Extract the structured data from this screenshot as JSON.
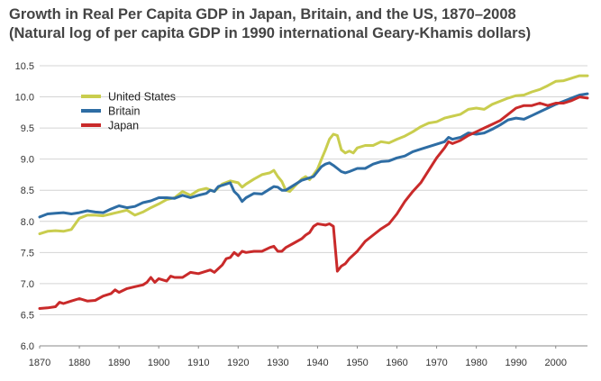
{
  "chart_data": {
    "type": "line",
    "title": "Growth in Real Per Capita GDP in Japan, Britain, and the US, 1870–2008",
    "subtitle": "(Natural log of per capita GDP in 1990 international Geary-Khamis dollars)",
    "xlabel": "",
    "ylabel": "",
    "xlim": [
      1870,
      2008
    ],
    "ylim": [
      6.0,
      10.5
    ],
    "x_ticks": [
      "1870",
      "1880",
      "1890",
      "1900",
      "1910",
      "1920",
      "1930",
      "1940",
      "1950",
      "1960",
      "1970",
      "1980",
      "1990",
      "2000"
    ],
    "y_ticks": [
      "6.0",
      "6.5",
      "7.0",
      "7.5",
      "8.0",
      "8.5",
      "9.0",
      "9.5",
      "10.0",
      "10.5"
    ],
    "grid": "horizontal",
    "legend_position": "top-left",
    "series": [
      {
        "name": "United States",
        "color": "#c9cd4e",
        "points": [
          [
            1870,
            7.8
          ],
          [
            1872,
            7.84
          ],
          [
            1874,
            7.85
          ],
          [
            1876,
            7.84
          ],
          [
            1878,
            7.87
          ],
          [
            1880,
            8.05
          ],
          [
            1882,
            8.1
          ],
          [
            1884,
            8.1
          ],
          [
            1886,
            8.09
          ],
          [
            1888,
            8.12
          ],
          [
            1890,
            8.15
          ],
          [
            1892,
            8.18
          ],
          [
            1894,
            8.1
          ],
          [
            1896,
            8.15
          ],
          [
            1898,
            8.22
          ],
          [
            1900,
            8.28
          ],
          [
            1902,
            8.35
          ],
          [
            1904,
            8.38
          ],
          [
            1906,
            8.48
          ],
          [
            1908,
            8.42
          ],
          [
            1910,
            8.5
          ],
          [
            1912,
            8.53
          ],
          [
            1914,
            8.48
          ],
          [
            1916,
            8.6
          ],
          [
            1918,
            8.65
          ],
          [
            1920,
            8.62
          ],
          [
            1921,
            8.55
          ],
          [
            1922,
            8.6
          ],
          [
            1924,
            8.68
          ],
          [
            1926,
            8.75
          ],
          [
            1928,
            8.78
          ],
          [
            1929,
            8.82
          ],
          [
            1930,
            8.72
          ],
          [
            1931,
            8.64
          ],
          [
            1932,
            8.5
          ],
          [
            1933,
            8.48
          ],
          [
            1934,
            8.55
          ],
          [
            1936,
            8.68
          ],
          [
            1937,
            8.72
          ],
          [
            1938,
            8.67
          ],
          [
            1939,
            8.75
          ],
          [
            1940,
            8.84
          ],
          [
            1941,
            9.0
          ],
          [
            1942,
            9.15
          ],
          [
            1943,
            9.32
          ],
          [
            1944,
            9.4
          ],
          [
            1945,
            9.38
          ],
          [
            1946,
            9.15
          ],
          [
            1947,
            9.1
          ],
          [
            1948,
            9.13
          ],
          [
            1949,
            9.1
          ],
          [
            1950,
            9.18
          ],
          [
            1952,
            9.22
          ],
          [
            1954,
            9.22
          ],
          [
            1956,
            9.28
          ],
          [
            1958,
            9.26
          ],
          [
            1960,
            9.32
          ],
          [
            1962,
            9.37
          ],
          [
            1964,
            9.44
          ],
          [
            1966,
            9.52
          ],
          [
            1968,
            9.58
          ],
          [
            1970,
            9.6
          ],
          [
            1972,
            9.66
          ],
          [
            1974,
            9.69
          ],
          [
            1976,
            9.72
          ],
          [
            1978,
            9.8
          ],
          [
            1980,
            9.82
          ],
          [
            1982,
            9.8
          ],
          [
            1984,
            9.88
          ],
          [
            1986,
            9.93
          ],
          [
            1988,
            9.98
          ],
          [
            1990,
            10.02
          ],
          [
            1992,
            10.03
          ],
          [
            1994,
            10.08
          ],
          [
            1996,
            10.12
          ],
          [
            1998,
            10.18
          ],
          [
            2000,
            10.25
          ],
          [
            2002,
            10.26
          ],
          [
            2004,
            10.3
          ],
          [
            2006,
            10.34
          ],
          [
            2008,
            10.34
          ]
        ]
      },
      {
        "name": "Britain",
        "color": "#2e6da4",
        "points": [
          [
            1870,
            8.07
          ],
          [
            1872,
            8.12
          ],
          [
            1874,
            8.13
          ],
          [
            1876,
            8.14
          ],
          [
            1878,
            8.12
          ],
          [
            1880,
            8.14
          ],
          [
            1882,
            8.17
          ],
          [
            1884,
            8.15
          ],
          [
            1886,
            8.14
          ],
          [
            1888,
            8.2
          ],
          [
            1890,
            8.25
          ],
          [
            1892,
            8.22
          ],
          [
            1894,
            8.24
          ],
          [
            1896,
            8.3
          ],
          [
            1898,
            8.33
          ],
          [
            1900,
            8.38
          ],
          [
            1902,
            8.38
          ],
          [
            1904,
            8.37
          ],
          [
            1906,
            8.42
          ],
          [
            1908,
            8.38
          ],
          [
            1910,
            8.42
          ],
          [
            1912,
            8.45
          ],
          [
            1913,
            8.5
          ],
          [
            1914,
            8.48
          ],
          [
            1915,
            8.56
          ],
          [
            1916,
            8.58
          ],
          [
            1917,
            8.6
          ],
          [
            1918,
            8.62
          ],
          [
            1919,
            8.48
          ],
          [
            1920,
            8.42
          ],
          [
            1921,
            8.32
          ],
          [
            1922,
            8.38
          ],
          [
            1924,
            8.45
          ],
          [
            1926,
            8.44
          ],
          [
            1928,
            8.52
          ],
          [
            1929,
            8.56
          ],
          [
            1930,
            8.55
          ],
          [
            1931,
            8.5
          ],
          [
            1932,
            8.5
          ],
          [
            1934,
            8.58
          ],
          [
            1936,
            8.66
          ],
          [
            1938,
            8.7
          ],
          [
            1939,
            8.72
          ],
          [
            1940,
            8.8
          ],
          [
            1941,
            8.88
          ],
          [
            1942,
            8.92
          ],
          [
            1943,
            8.94
          ],
          [
            1944,
            8.9
          ],
          [
            1945,
            8.85
          ],
          [
            1946,
            8.8
          ],
          [
            1947,
            8.78
          ],
          [
            1948,
            8.8
          ],
          [
            1950,
            8.85
          ],
          [
            1952,
            8.85
          ],
          [
            1954,
            8.92
          ],
          [
            1956,
            8.96
          ],
          [
            1958,
            8.97
          ],
          [
            1960,
            9.02
          ],
          [
            1962,
            9.05
          ],
          [
            1964,
            9.12
          ],
          [
            1966,
            9.16
          ],
          [
            1968,
            9.2
          ],
          [
            1970,
            9.24
          ],
          [
            1972,
            9.28
          ],
          [
            1973,
            9.35
          ],
          [
            1974,
            9.32
          ],
          [
            1976,
            9.35
          ],
          [
            1978,
            9.42
          ],
          [
            1980,
            9.4
          ],
          [
            1982,
            9.42
          ],
          [
            1984,
            9.48
          ],
          [
            1986,
            9.55
          ],
          [
            1988,
            9.63
          ],
          [
            1990,
            9.66
          ],
          [
            1992,
            9.64
          ],
          [
            1994,
            9.7
          ],
          [
            1996,
            9.76
          ],
          [
            1998,
            9.82
          ],
          [
            2000,
            9.88
          ],
          [
            2002,
            9.93
          ],
          [
            2004,
            9.98
          ],
          [
            2006,
            10.03
          ],
          [
            2008,
            10.05
          ]
        ]
      },
      {
        "name": "Japan",
        "color": "#c92a2a",
        "points": [
          [
            1870,
            6.6
          ],
          [
            1872,
            6.61
          ],
          [
            1874,
            6.63
          ],
          [
            1875,
            6.7
          ],
          [
            1876,
            6.68
          ],
          [
            1878,
            6.72
          ],
          [
            1880,
            6.76
          ],
          [
            1882,
            6.72
          ],
          [
            1884,
            6.73
          ],
          [
            1886,
            6.8
          ],
          [
            1888,
            6.84
          ],
          [
            1889,
            6.9
          ],
          [
            1890,
            6.86
          ],
          [
            1892,
            6.92
          ],
          [
            1894,
            6.95
          ],
          [
            1896,
            6.98
          ],
          [
            1897,
            7.02
          ],
          [
            1898,
            7.1
          ],
          [
            1899,
            7.02
          ],
          [
            1900,
            7.08
          ],
          [
            1902,
            7.04
          ],
          [
            1903,
            7.12
          ],
          [
            1904,
            7.1
          ],
          [
            1906,
            7.1
          ],
          [
            1908,
            7.18
          ],
          [
            1910,
            7.16
          ],
          [
            1912,
            7.2
          ],
          [
            1913,
            7.22
          ],
          [
            1914,
            7.18
          ],
          [
            1916,
            7.3
          ],
          [
            1917,
            7.4
          ],
          [
            1918,
            7.42
          ],
          [
            1919,
            7.5
          ],
          [
            1920,
            7.45
          ],
          [
            1921,
            7.52
          ],
          [
            1922,
            7.5
          ],
          [
            1924,
            7.52
          ],
          [
            1926,
            7.52
          ],
          [
            1928,
            7.58
          ],
          [
            1929,
            7.6
          ],
          [
            1930,
            7.52
          ],
          [
            1931,
            7.52
          ],
          [
            1932,
            7.58
          ],
          [
            1934,
            7.65
          ],
          [
            1936,
            7.72
          ],
          [
            1937,
            7.78
          ],
          [
            1938,
            7.82
          ],
          [
            1939,
            7.92
          ],
          [
            1940,
            7.96
          ],
          [
            1941,
            7.95
          ],
          [
            1942,
            7.94
          ],
          [
            1943,
            7.96
          ],
          [
            1944,
            7.92
          ],
          [
            1945,
            7.2
          ],
          [
            1946,
            7.28
          ],
          [
            1947,
            7.32
          ],
          [
            1948,
            7.4
          ],
          [
            1950,
            7.52
          ],
          [
            1952,
            7.68
          ],
          [
            1954,
            7.78
          ],
          [
            1956,
            7.88
          ],
          [
            1958,
            7.96
          ],
          [
            1960,
            8.12
          ],
          [
            1962,
            8.32
          ],
          [
            1964,
            8.48
          ],
          [
            1966,
            8.62
          ],
          [
            1968,
            8.82
          ],
          [
            1970,
            9.02
          ],
          [
            1972,
            9.18
          ],
          [
            1973,
            9.28
          ],
          [
            1974,
            9.25
          ],
          [
            1976,
            9.3
          ],
          [
            1978,
            9.38
          ],
          [
            1980,
            9.44
          ],
          [
            1982,
            9.5
          ],
          [
            1984,
            9.56
          ],
          [
            1986,
            9.62
          ],
          [
            1988,
            9.72
          ],
          [
            1990,
            9.82
          ],
          [
            1992,
            9.86
          ],
          [
            1994,
            9.86
          ],
          [
            1996,
            9.9
          ],
          [
            1998,
            9.86
          ],
          [
            2000,
            9.9
          ],
          [
            2002,
            9.9
          ],
          [
            2004,
            9.94
          ],
          [
            2006,
            10.0
          ],
          [
            2008,
            9.98
          ]
        ]
      }
    ]
  }
}
